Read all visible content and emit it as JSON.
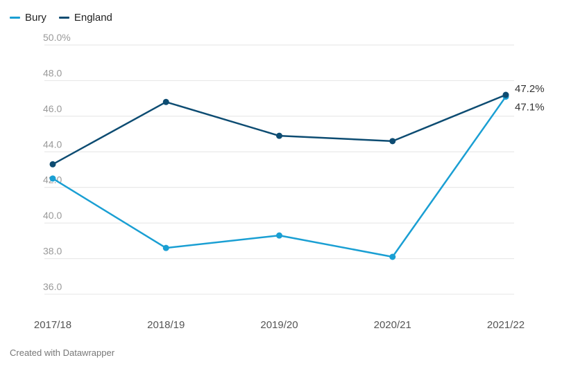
{
  "legend": {
    "items": [
      {
        "label": "Bury",
        "color": "#1a9fd3"
      },
      {
        "label": "England",
        "color": "#0d4c72"
      }
    ]
  },
  "footer": {
    "credit": "Created with Datawrapper"
  },
  "chart_data": {
    "type": "line",
    "title": "",
    "xlabel": "",
    "ylabel": "",
    "categories": [
      "2017/18",
      "2018/19",
      "2019/20",
      "2020/21",
      "2021/22"
    ],
    "y_ticks": [
      36,
      38,
      40,
      42,
      44,
      46,
      48,
      50
    ],
    "y_tick_labels": [
      "36.0",
      "38.0",
      "40.0",
      "42.0",
      "44.0",
      "46.0",
      "48.0",
      "50.0%"
    ],
    "ylim": [
      36,
      50
    ],
    "grid": true,
    "legend_position": "top-left",
    "series": [
      {
        "name": "Bury",
        "color": "#1a9fd3",
        "values": [
          42.5,
          38.6,
          39.3,
          38.1,
          47.1
        ],
        "end_label": "47.1%"
      },
      {
        "name": "England",
        "color": "#0d4c72",
        "values": [
          43.3,
          46.8,
          44.9,
          44.6,
          47.2
        ],
        "end_label": "47.2%"
      }
    ]
  }
}
